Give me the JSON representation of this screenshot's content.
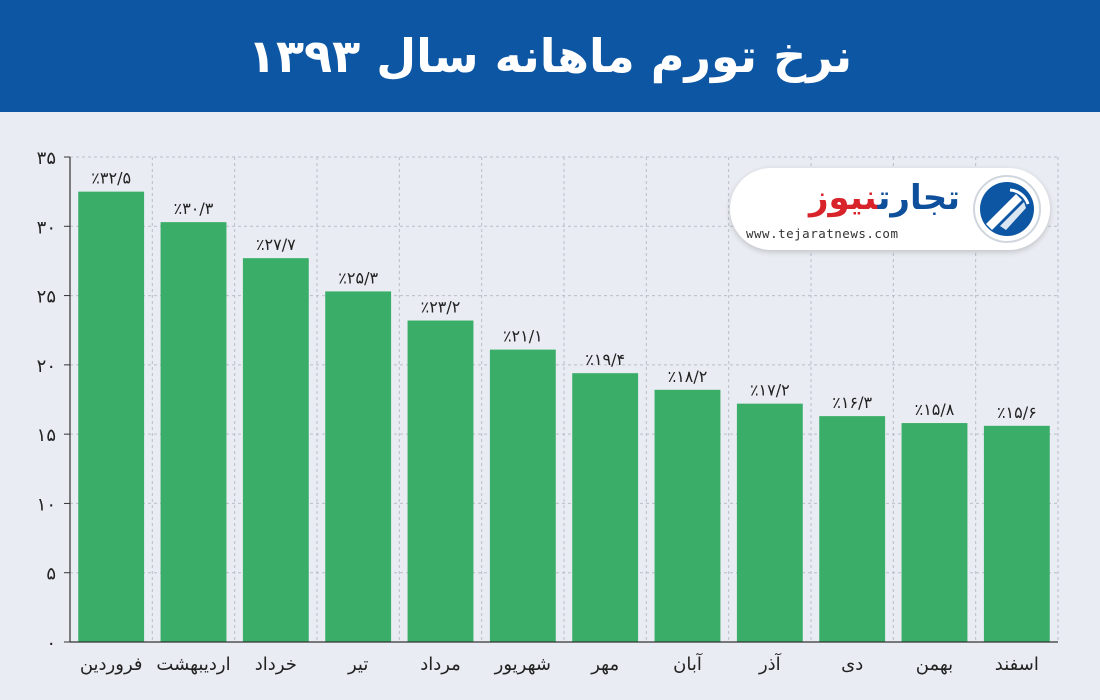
{
  "header": {
    "title": "نرخ تورم ماهانه سال ۱۳۹۳"
  },
  "logo": {
    "name_part1": "تجارت",
    "name_part2": "نیوز",
    "url": "www.tejaratnews.com"
  },
  "colors": {
    "header_bg": "#0d56a3",
    "bar": "#3aae68",
    "background": "#e9ecf2",
    "logo_blue": "#0d4f9a",
    "logo_red": "#d8232a"
  },
  "chart_data": {
    "type": "bar",
    "categories": [
      "فروردین",
      "اردیبهشت",
      "خرداد",
      "تیر",
      "مرداد",
      "شهریور",
      "مهر",
      "آبان",
      "آذر",
      "دی",
      "بهمن",
      "اسفند"
    ],
    "values": [
      32.5,
      30.3,
      27.7,
      25.3,
      23.2,
      21.1,
      19.4,
      18.2,
      17.2,
      16.3,
      15.8,
      15.6
    ],
    "data_labels": [
      "٪۳۲/۵",
      "٪۳۰/۳",
      "٪۲۷/۷",
      "٪۲۵/۳",
      "٪۲۳/۲",
      "٪۲۱/۱",
      "٪۱۹/۴",
      "٪۱۸/۲",
      "٪۱۷/۲",
      "٪۱۶/۳",
      "٪۱۵/۸",
      "٪۱۵/۶"
    ],
    "ylim": [
      0,
      35
    ],
    "yticks": [
      0,
      5,
      10,
      15,
      20,
      25,
      30,
      35
    ],
    "ytick_labels": [
      "۰",
      "۵",
      "۱۰",
      "۱۵",
      "۲۰",
      "۲۵",
      "۳۰",
      "۳۵"
    ],
    "grid": true
  }
}
